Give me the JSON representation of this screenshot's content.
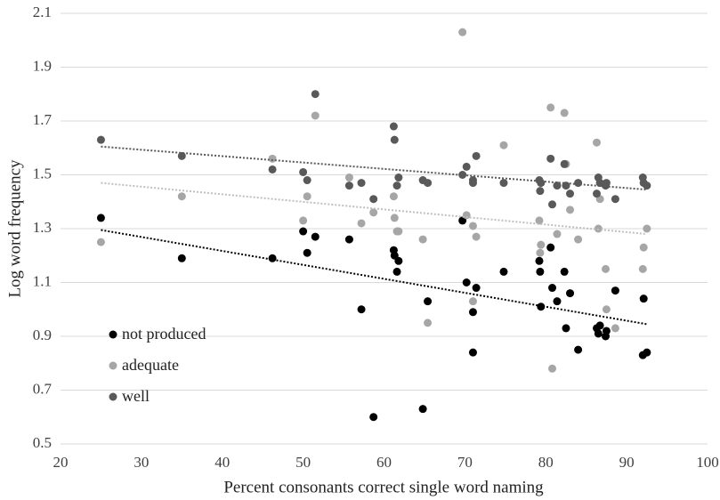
{
  "chart_data": {
    "type": "scatter",
    "x_label": "Percent consonants correct single word naming",
    "y_label": "Log word frequency",
    "xlim": [
      20,
      100
    ],
    "ylim": [
      0.5,
      2.1
    ],
    "xticks": [
      20,
      30,
      40,
      50,
      60,
      70,
      80,
      90,
      100
    ],
    "yticks": [
      0.5,
      0.7,
      0.9,
      1.1,
      1.3,
      1.5,
      1.7,
      1.9,
      2.1
    ],
    "grid": true,
    "legend": "lower left",
    "x": [
      25,
      35,
      46.2,
      50,
      50.5,
      51.5,
      55.7,
      57.2,
      58.7,
      61.2,
      61.3,
      61.6,
      61.8,
      64.8,
      65.4,
      69.7,
      70.2,
      71,
      71,
      71.4,
      74.8,
      79.2,
      79.3,
      79.4,
      80.6,
      80.8,
      81.4,
      82.3,
      82.5,
      83,
      84,
      86.3,
      86.5,
      86.7,
      87.4,
      87.5,
      88.6,
      92,
      92.1,
      92.5
    ],
    "series": [
      {
        "name": "not produced",
        "color": "#000000",
        "trendline_color": "#000000",
        "values": [
          1.34,
          1.19,
          1.19,
          1.29,
          1.21,
          1.27,
          1.26,
          1.0,
          0.6,
          1.22,
          1.2,
          1.14,
          1.18,
          0.63,
          1.03,
          1.33,
          1.1,
          0.99,
          0.84,
          1.08,
          1.14,
          1.18,
          1.14,
          1.01,
          1.23,
          1.08,
          1.03,
          1.14,
          0.93,
          1.06,
          0.85,
          0.93,
          0.91,
          0.94,
          0.9,
          0.92,
          1.07,
          0.83,
          1.04,
          0.84
        ],
        "trendline": {
          "x": [
            25,
            92.5
          ],
          "y": [
            1.295,
            0.945
          ]
        }
      },
      {
        "name": "adequate",
        "color": "#a6a6a6",
        "trendline_color": "#bfbfbf",
        "values": [
          1.25,
          1.42,
          1.56,
          1.33,
          1.42,
          1.72,
          1.49,
          1.32,
          1.36,
          1.42,
          1.34,
          1.29,
          1.29,
          1.26,
          0.95,
          2.03,
          1.35,
          1.03,
          1.31,
          1.27,
          1.61,
          1.33,
          1.21,
          1.24,
          1.75,
          0.78,
          1.28,
          1.73,
          1.54,
          1.37,
          1.26,
          1.62,
          1.3,
          1.41,
          1.15,
          1.0,
          0.93,
          1.15,
          1.23,
          1.3
        ],
        "trendline": {
          "x": [
            25,
            92.5
          ],
          "y": [
            1.47,
            1.28
          ]
        }
      },
      {
        "name": "well",
        "color": "#595959",
        "trendline_color": "#595959",
        "values": [
          1.63,
          1.57,
          1.52,
          1.51,
          1.48,
          1.8,
          1.46,
          1.47,
          1.41,
          1.68,
          1.63,
          1.46,
          1.49,
          1.48,
          1.47,
          1.5,
          1.53,
          1.48,
          1.47,
          1.57,
          1.47,
          1.48,
          1.44,
          1.47,
          1.56,
          1.39,
          1.46,
          1.54,
          1.46,
          1.43,
          1.47,
          1.43,
          1.49,
          1.47,
          1.46,
          1.47,
          1.41,
          1.49,
          1.47,
          1.46
        ],
        "trendline": {
          "x": [
            25,
            92.5
          ],
          "y": [
            1.605,
            1.445
          ]
        }
      }
    ]
  }
}
